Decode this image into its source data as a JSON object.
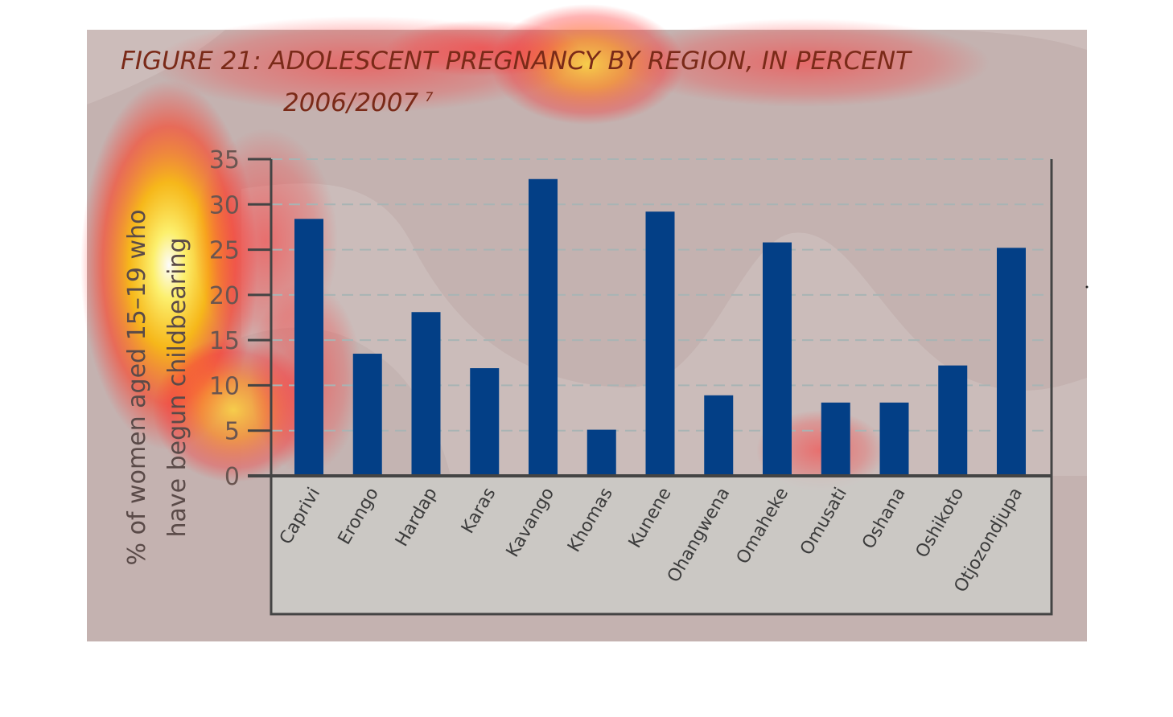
{
  "title_line1": "FIGURE 21: ADOLESCENT PREGNANCY BY REGION, IN PERCENT",
  "title_line2": "2006/2007",
  "title_footnote": "7",
  "ylabel_line1": "% of women aged 15–19 who",
  "ylabel_line2": "have begun childbearing",
  "colors": {
    "bar": "#033f86",
    "panel": "#c4b2b0",
    "axis": "#444444",
    "grid": "#a8b4b4",
    "category_box": "#cccbc8"
  },
  "chart_data": {
    "type": "bar",
    "categories": [
      "Caprivi",
      "Erongo",
      "Hardap",
      "Karas",
      "Kavango",
      "Khomas",
      "Kunene",
      "Ohangwena",
      "Omaheke",
      "Omusati",
      "Oshana",
      "Oshikoto",
      "Otjozondjupa"
    ],
    "values": [
      28.4,
      13.5,
      18.1,
      11.9,
      32.8,
      5.1,
      29.2,
      8.9,
      25.8,
      8.1,
      8.1,
      12.2,
      25.2
    ],
    "yticks": [
      0,
      5,
      10,
      15,
      20,
      25,
      30,
      35
    ],
    "ylim": [
      0,
      35
    ],
    "grid": true,
    "grid_style": "dashed",
    "xlabel": "",
    "ylabel": "% of women aged 15–19 who have begun childbearing",
    "title": "FIGURE 21: ADOLESCENT PREGNANCY BY REGION, IN PERCENT 2006/2007"
  }
}
